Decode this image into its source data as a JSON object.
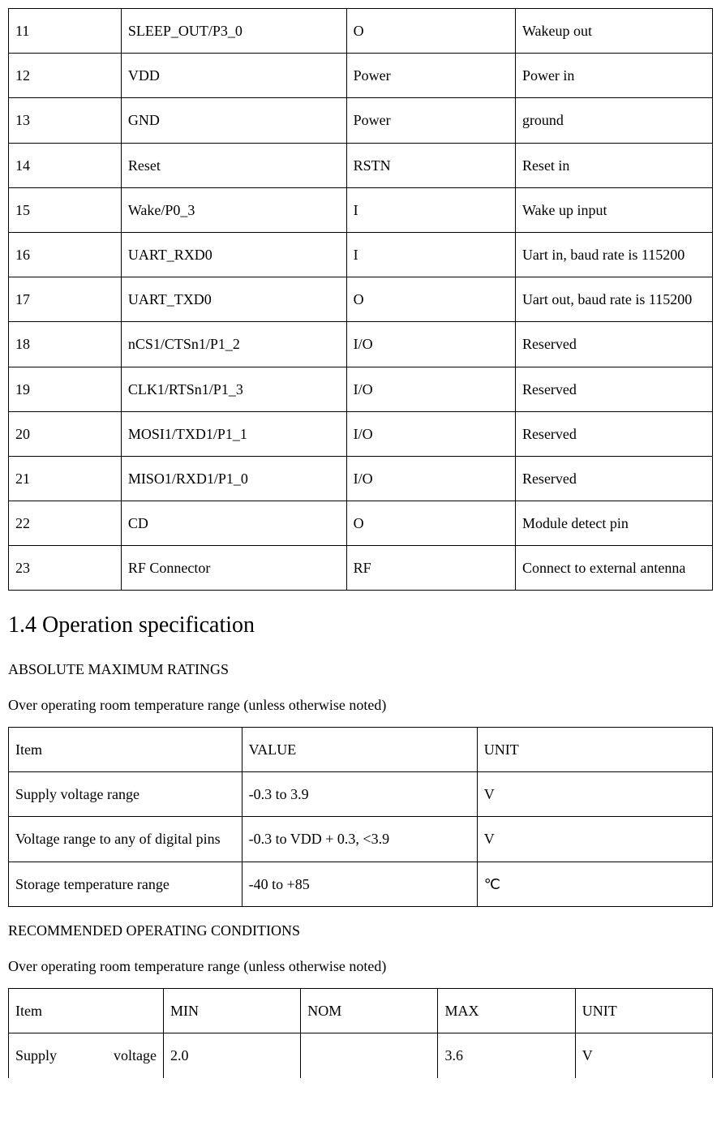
{
  "pinTable": {
    "rows": [
      {
        "num": "11",
        "name": "SLEEP_OUT/P3_0",
        "type": "O",
        "desc": "Wakeup out"
      },
      {
        "num": "12",
        "name": "VDD",
        "type": "Power",
        "desc": "Power in"
      },
      {
        "num": "13",
        "name": "GND",
        "type": "Power",
        "desc": "ground"
      },
      {
        "num": "14",
        "name": "Reset",
        "type": "RSTN",
        "desc": "Reset in"
      },
      {
        "num": "15",
        "name": "Wake/P0_3",
        "type": "I",
        "desc": "Wake up input"
      },
      {
        "num": "16",
        "name": "UART_RXD0",
        "type": "I",
        "desc": "Uart in, baud rate is 115200"
      },
      {
        "num": "17",
        "name": "UART_TXD0",
        "type": "O",
        "desc": "Uart out, baud rate is 115200"
      },
      {
        "num": "18",
        "name": "nCS1/CTSn1/P1_2",
        "type": "I/O",
        "desc": "Reserved"
      },
      {
        "num": "19",
        "name": "CLK1/RTSn1/P1_3",
        "type": "I/O",
        "desc": "Reserved"
      },
      {
        "num": "20",
        "name": "MOSI1/TXD1/P1_1",
        "type": "I/O",
        "desc": "Reserved"
      },
      {
        "num": "21",
        "name": "MISO1/RXD1/P1_0",
        "type": "I/O",
        "desc": "Reserved"
      },
      {
        "num": "22",
        "name": "CD",
        "type": "O",
        "desc": "Module detect pin"
      },
      {
        "num": "23",
        "name": "RF Connector",
        "type": "RF",
        "desc": "Connect to external antenna"
      }
    ]
  },
  "section": {
    "heading": "1.4  Operation specification",
    "absMaxTitle": "ABSOLUTE MAXIMUM RATINGS",
    "rangeNote1": "Over operating room temperature range (unless otherwise noted)",
    "recCondTitle": "RECOMMENDED OPERATING CONDITIONS",
    "rangeNote2": "Over operating room temperature range (unless otherwise noted)"
  },
  "absMaxTable": {
    "headers": {
      "item": "Item",
      "value": "VALUE",
      "unit": "UNIT"
    },
    "rows": [
      {
        "item": "Supply voltage range",
        "value": "-0.3 to 3.9",
        "unit": "V"
      },
      {
        "item": "Voltage range to any of digital pins",
        "value": "-0.3 to VDD + 0.3,    <3.9",
        "unit": "V"
      },
      {
        "item": "Storage temperature range",
        "value": "-40 to +85",
        "unit": "℃"
      }
    ]
  },
  "recCondTable": {
    "headers": {
      "item": "Item",
      "min": "MIN",
      "nom": "NOM",
      "max": "MAX",
      "unit": "UNIT"
    },
    "rows": [
      {
        "item_a": "Supply",
        "item_b": "voltage",
        "min": "2.0",
        "nom": "",
        "max": "3.6",
        "unit": "V"
      }
    ]
  }
}
